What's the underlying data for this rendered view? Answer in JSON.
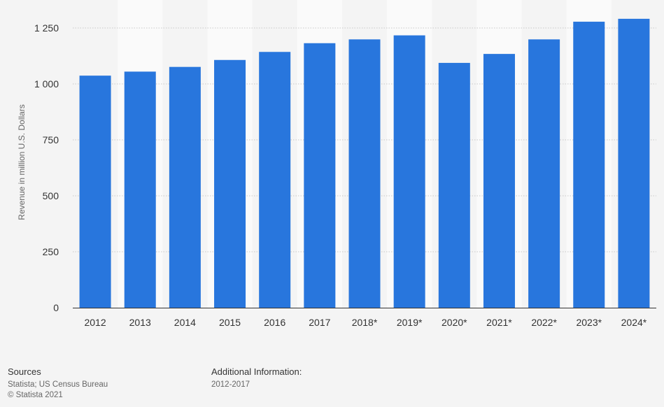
{
  "chart_data": {
    "type": "bar",
    "categories": [
      "2012",
      "2013",
      "2014",
      "2015",
      "2016",
      "2017",
      "2018*",
      "2019*",
      "2020*",
      "2021*",
      "2022*",
      "2023*",
      "2024*"
    ],
    "values": [
      1037,
      1055,
      1076,
      1107,
      1143,
      1182,
      1199,
      1217,
      1094,
      1134,
      1199,
      1278,
      1291
    ],
    "ylabel": "Revenue in million U.S. Dollars",
    "ylim": [
      0,
      1300
    ],
    "yticks": [
      0,
      250,
      500,
      750,
      1000,
      1250
    ],
    "ytick_labels": [
      "0",
      "250",
      "500",
      "750",
      "1 000",
      "1 250"
    ],
    "grid": true,
    "colors": {
      "bar": "#2876dd",
      "grid": "#c8c8c8",
      "axis": "#333333",
      "band": "#fafafa"
    }
  },
  "footer": {
    "sources_heading": "Sources",
    "sources_line1": "Statista; US Census Bureau",
    "sources_line2": "© Statista 2021",
    "additional_heading": "Additional Information:",
    "additional_text": "2012-2017"
  }
}
